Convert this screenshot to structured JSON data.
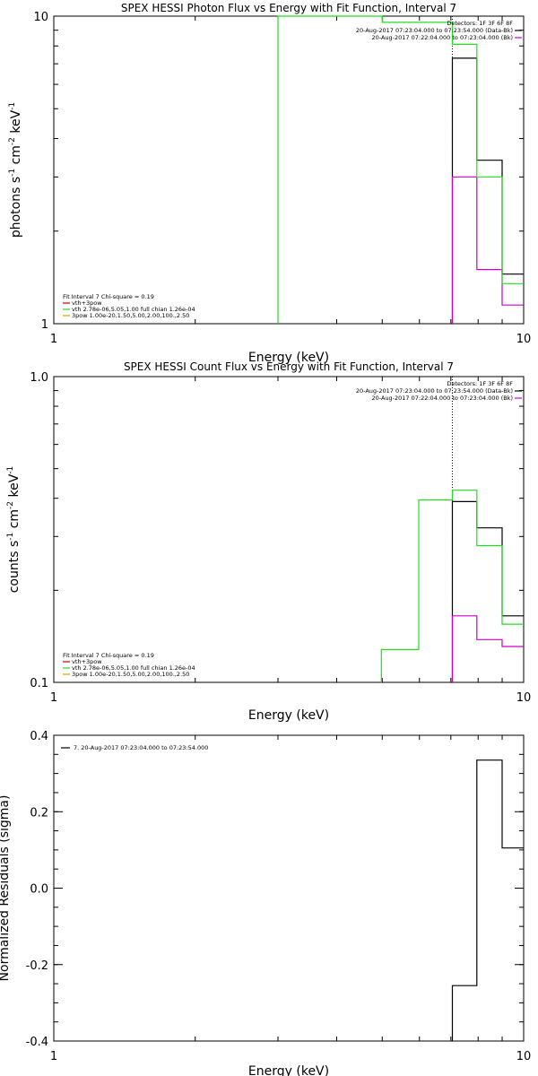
{
  "colors": {
    "black": "#000000",
    "green": "#22dd22",
    "magenta": "#cc00cc",
    "red": "#cc0000",
    "orange": "#e5a000"
  },
  "chart_data": [
    {
      "type": "line",
      "id": "photon",
      "title": "SPEX HESSI Photon Flux vs Energy with Fit Function, Interval 7",
      "xlabel": "Energy (keV)",
      "ylabel_main": "photons s",
      "ylabel_sup1": "-1",
      "ylabel_mid": " cm",
      "ylabel_sup2": "-2",
      "ylabel_mid2": " keV",
      "ylabel_sup3": "-1",
      "xscale": "log",
      "yscale": "log",
      "xlim": [
        1,
        10
      ],
      "ylim": [
        1,
        10
      ],
      "xticks": [
        {
          "v": 1,
          "label": "1"
        },
        {
          "v": 10,
          "label": "10"
        }
      ],
      "yticks": [
        {
          "v": 1,
          "label": "1"
        },
        {
          "v": 10,
          "label": "10"
        }
      ],
      "vline": {
        "x": 7.05,
        "style": "dotted"
      },
      "legend_right": {
        "header": "Detectors: 1F 3F 6F 8F",
        "entries": [
          {
            "label": "20-Aug-2017 07:23:04.000 to 07:23:54.000 (Data-Bk)",
            "color": "black"
          },
          {
            "label": "20-Aug-2017 07:22:04.000 to 07:23:04.000 (Bk)",
            "color": "magenta"
          }
        ]
      },
      "legend_left": {
        "header": "Fit Interval 7   Chi-square = 0.19",
        "entries": [
          {
            "label": "vth+3pow",
            "color": "red"
          },
          {
            "label": "vth 2.78e-06,5.05,1.00  full chian 1.26e-04",
            "color": "green"
          },
          {
            "label": "3pow 1.00e-20,1.50,5.00,2.00,100.,2.50",
            "color": "orange"
          }
        ]
      },
      "series": [
        {
          "color": "black",
          "edges": [
            7.05,
            7.95,
            9.0,
            10.0
          ],
          "values": [
            7.3,
            3.4,
            1.45
          ]
        },
        {
          "color": "magenta",
          "edges": [
            7.05,
            7.95,
            9.0,
            10.0
          ],
          "values": [
            3.0,
            1.5,
            1.15
          ]
        },
        {
          "color": "green",
          "edges": [
            3.0,
            5.0,
            7.05,
            7.95,
            9.0,
            10.0
          ],
          "values": [
            10.0,
            9.55,
            8.1,
            3.0,
            1.35
          ]
        }
      ]
    },
    {
      "type": "line",
      "id": "count",
      "title": "SPEX HESSI Count Flux vs Energy with Fit Function, Interval 7",
      "xlabel": "Energy (keV)",
      "ylabel_main": "counts s",
      "ylabel_sup1": "-1",
      "ylabel_mid": " cm",
      "ylabel_sup2": "-2",
      "ylabel_mid2": " keV",
      "ylabel_sup3": "-1",
      "xscale": "log",
      "yscale": "log",
      "xlim": [
        1,
        10
      ],
      "ylim": [
        0.1,
        1.0
      ],
      "xticks": [
        {
          "v": 1,
          "label": "1"
        },
        {
          "v": 10,
          "label": "10"
        }
      ],
      "yticks": [
        {
          "v": 0.1,
          "label": "0.1"
        },
        {
          "v": 1.0,
          "label": "1.0"
        }
      ],
      "vline": {
        "x": 7.05,
        "style": "dotted"
      },
      "legend_right": {
        "header": "Detectors: 1F 3F 6F 8F",
        "entries": [
          {
            "label": "20-Aug-2017 07:23:04.000 to 07:23:54.000 (Data-Bk)",
            "color": "black"
          },
          {
            "label": "20-Aug-2017 07:22:04.000 to 07:23:04.000 (Bk)",
            "color": "magenta"
          }
        ]
      },
      "legend_left": {
        "header": "Fit Interval 7   Chi-square = 0.19",
        "entries": [
          {
            "label": "vth+3pow",
            "color": "red"
          },
          {
            "label": "vth 2.78e-06,5.05,1.00  full chian 1.26e-04",
            "color": "green"
          },
          {
            "label": "3pow 1.00e-20,1.50,5.00,2.00,100.,2.50",
            "color": "orange"
          }
        ]
      },
      "series": [
        {
          "color": "black",
          "edges": [
            7.05,
            7.95,
            9.0,
            10.0
          ],
          "values": [
            0.39,
            0.32,
            0.165
          ]
        },
        {
          "color": "magenta",
          "edges": [
            7.05,
            7.95,
            9.0,
            10.0
          ],
          "values": [
            0.165,
            0.138,
            0.131
          ]
        },
        {
          "color": "green",
          "edges": [
            4.98,
            5.98,
            7.05,
            7.95,
            9.0,
            10.0
          ],
          "values": [
            0.128,
            0.395,
            0.425,
            0.28,
            0.155
          ]
        }
      ]
    },
    {
      "type": "line",
      "id": "residuals",
      "title": "",
      "xlabel": "Energy (keV)",
      "ylabel_main": "Normalized Residuals (sigma)",
      "xscale": "log",
      "yscale": "linear",
      "xlim": [
        1,
        10
      ],
      "ylim": [
        -0.4,
        0.4
      ],
      "xticks": [
        {
          "v": 1,
          "label": "1"
        },
        {
          "v": 10,
          "label": "10"
        }
      ],
      "yticks": [
        {
          "v": 0.4,
          "label": "0.4"
        },
        {
          "v": 0.2,
          "label": "0.2"
        },
        {
          "v": 0.0,
          "label": "0.0"
        },
        {
          "v": -0.2,
          "label": "-0.2"
        },
        {
          "v": -0.4,
          "label": "-0.4"
        }
      ],
      "legend_left": {
        "header": "",
        "entries": [
          {
            "label": "7. 20-Aug-2017 07:23:04.000 to 07:23:54.000",
            "color": "black"
          }
        ]
      },
      "series": [
        {
          "color": "black",
          "edges": [
            7.05,
            7.95,
            9.0,
            10.0
          ],
          "values": [
            -0.255,
            0.335,
            0.105
          ]
        }
      ]
    }
  ]
}
